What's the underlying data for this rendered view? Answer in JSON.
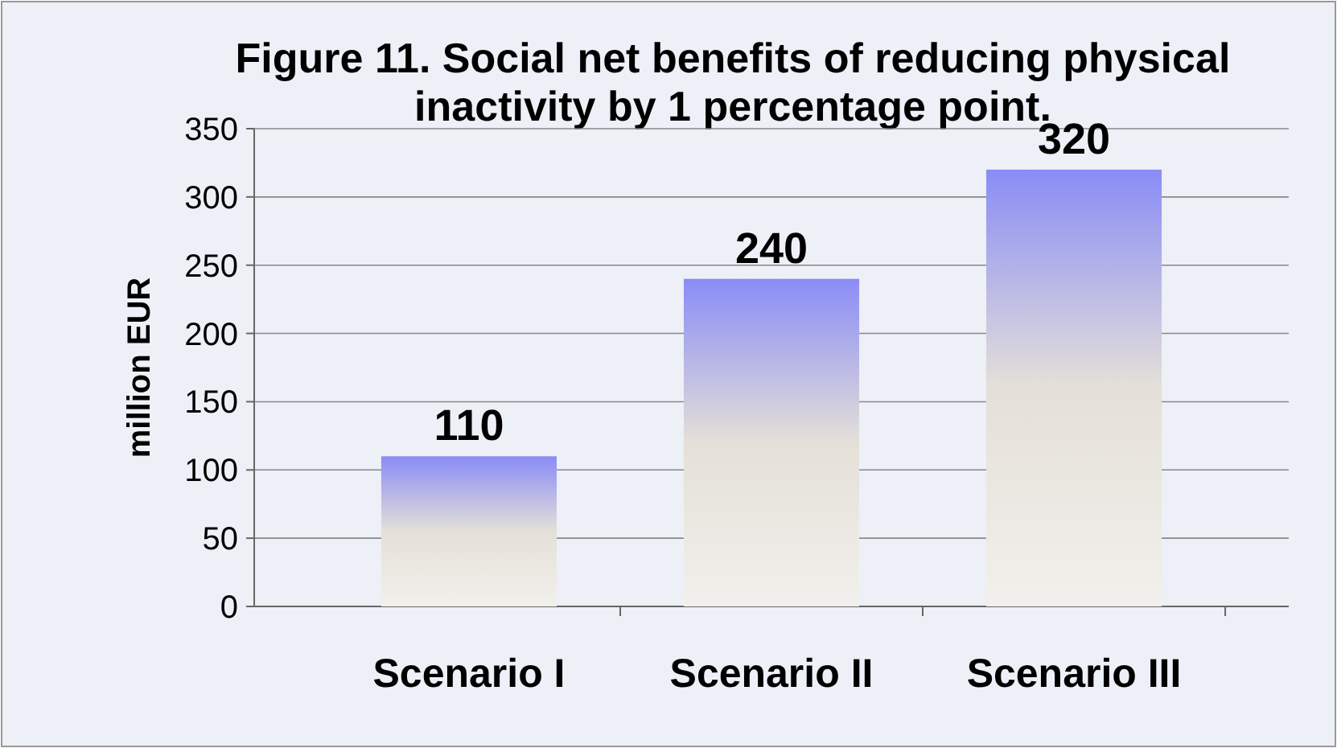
{
  "chart_data": {
    "type": "bar",
    "title": "Figure 11. Social net benefits of reducing physical inactivity by 1 percentage point.",
    "ylabel": "million EUR",
    "categories": [
      "Scenario I",
      "Scenario II",
      "Scenario III"
    ],
    "values": [
      110,
      240,
      320
    ],
    "color": "#8a8cf6",
    "ylim": [
      0,
      350
    ],
    "yticks": [
      0,
      50,
      100,
      150,
      200,
      250,
      300,
      350
    ],
    "grid": "y",
    "data_labels": true
  }
}
